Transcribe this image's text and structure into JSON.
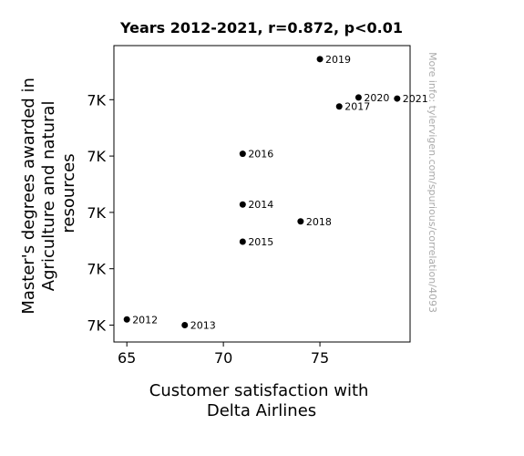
{
  "chart_data": {
    "type": "scatter",
    "title": "Years 2012-2021, r=0.872, p<0.01",
    "xlabel": [
      "Customer satisfaction with",
      "Delta Airlines"
    ],
    "ylabel": [
      "Master's degrees awarded in",
      "Agriculture and natural",
      "resources"
    ],
    "xlim": [
      64.33,
      79.67
    ],
    "ylim": [
      7145,
      7408
    ],
    "x_ticks": [
      {
        "value": 65,
        "label": "65"
      },
      {
        "value": 70,
        "label": "70"
      },
      {
        "value": 75,
        "label": "75"
      }
    ],
    "y_ticks": [
      {
        "value": 7160,
        "label": "7K"
      },
      {
        "value": 7210,
        "label": "7K"
      },
      {
        "value": 7260,
        "label": "7K"
      },
      {
        "value": 7310,
        "label": "7K"
      },
      {
        "value": 7360,
        "label": "7K"
      }
    ],
    "points": [
      {
        "x": 65,
        "y": 7165,
        "label": "2012"
      },
      {
        "x": 68,
        "y": 7160,
        "label": "2013"
      },
      {
        "x": 71,
        "y": 7267,
        "label": "2014"
      },
      {
        "x": 71,
        "y": 7234,
        "label": "2015"
      },
      {
        "x": 71,
        "y": 7312,
        "label": "2016"
      },
      {
        "x": 76,
        "y": 7354,
        "label": "2017"
      },
      {
        "x": 74,
        "y": 7252,
        "label": "2018"
      },
      {
        "x": 75,
        "y": 7396,
        "label": "2019"
      },
      {
        "x": 77,
        "y": 7362,
        "label": "2020"
      },
      {
        "x": 79,
        "y": 7361,
        "label": "2021"
      }
    ],
    "grid": false,
    "marker_color": "#000000",
    "watermark": "More info: tylervigen.com/spurious/correlation/4093",
    "watermark_color": "#aaaaaa"
  }
}
